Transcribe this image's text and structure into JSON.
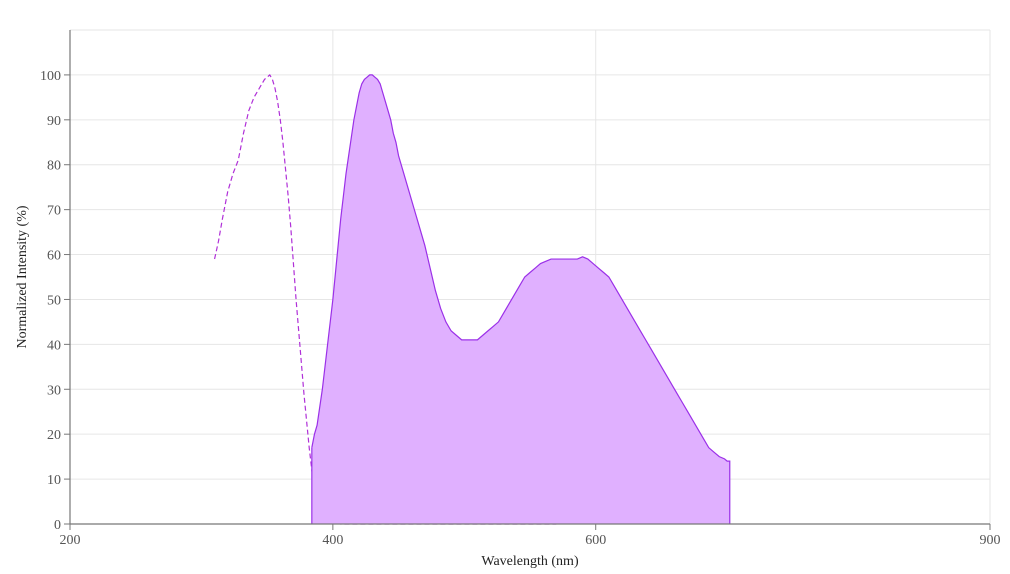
{
  "chart_data": {
    "type": "area",
    "title": "",
    "xlabel": "Wavelength (nm)",
    "ylabel": "Normalized Intensity (%)",
    "xlim": [
      200,
      900
    ],
    "ylim": [
      0,
      110
    ],
    "x_ticks": [
      200,
      400,
      600,
      900
    ],
    "y_ticks": [
      0,
      10,
      20,
      30,
      40,
      50,
      60,
      70,
      80,
      90,
      100
    ],
    "grid": true,
    "legend": "none",
    "colors": {
      "emission_fill": "#e0b0ff",
      "emission_line": "#9b30e8",
      "excitation_line": "#b030d8",
      "grid": "#e6e6e6",
      "axis": "#777777"
    },
    "series": [
      {
        "style": "dashed-line",
        "x": [
          310,
          313,
          316,
          320,
          324,
          328,
          332,
          336,
          340,
          344,
          348,
          352,
          354,
          356,
          358,
          360,
          362,
          364,
          366,
          368,
          370,
          372,
          374,
          376,
          378,
          380,
          382,
          384,
          386,
          388,
          390,
          392,
          394,
          396,
          398,
          400,
          402,
          404,
          406,
          408,
          410,
          412,
          414,
          416,
          420,
          430,
          450,
          480,
          520,
          560,
          570
        ],
        "y": [
          59,
          63,
          68,
          74,
          78,
          81,
          87,
          92,
          95,
          97,
          99,
          100,
          99,
          97,
          94,
          90,
          85,
          79,
          73,
          66,
          58,
          50,
          43,
          36,
          29,
          23,
          17,
          12,
          8,
          5,
          3,
          2,
          1.5,
          1,
          0.5,
          0.3,
          0.2,
          0.1,
          0,
          0,
          0,
          0,
          0,
          0,
          0,
          0,
          0,
          0,
          0,
          0,
          0
        ]
      },
      {
        "style": "filled-area",
        "x": [
          384,
          386,
          388,
          390,
          392,
          394,
          396,
          398,
          400,
          402,
          404,
          406,
          408,
          410,
          412,
          414,
          416,
          418,
          420,
          422,
          424,
          426,
          428,
          430,
          432,
          434,
          436,
          438,
          440,
          442,
          444,
          446,
          448,
          450,
          454,
          458,
          462,
          466,
          470,
          474,
          478,
          482,
          486,
          490,
          494,
          498,
          502,
          506,
          510,
          514,
          518,
          522,
          526,
          530,
          534,
          538,
          542,
          546,
          550,
          554,
          558,
          562,
          566,
          570,
          574,
          578,
          582,
          586,
          590,
          594,
          598,
          602,
          606,
          610,
          614,
          618,
          622,
          626,
          630,
          634,
          638,
          642,
          646,
          650,
          654,
          658,
          662,
          666,
          670,
          674,
          678,
          682,
          686,
          690,
          694,
          698,
          700,
          702
        ],
        "y": [
          17,
          20,
          22,
          26,
          30,
          35,
          40,
          45,
          50,
          56,
          62,
          68,
          73,
          78,
          82,
          86,
          90,
          93,
          96,
          98,
          99,
          99.5,
          100,
          100,
          99.5,
          99,
          98,
          96,
          94,
          92,
          90,
          87,
          85,
          82,
          78,
          74,
          70,
          66,
          62,
          57,
          52,
          48,
          45,
          43,
          42,
          41,
          41,
          41,
          41,
          42,
          43,
          44,
          45,
          47,
          49,
          51,
          53,
          55,
          56,
          57,
          58,
          58.5,
          59,
          59,
          59,
          59,
          59,
          59,
          59.5,
          59,
          58,
          57,
          56,
          55,
          53,
          51,
          49,
          47,
          45,
          43,
          41,
          39,
          37,
          35,
          33,
          31,
          29,
          27,
          25,
          23,
          21,
          19,
          17,
          16,
          15,
          14.5,
          14,
          14
        ]
      }
    ]
  }
}
